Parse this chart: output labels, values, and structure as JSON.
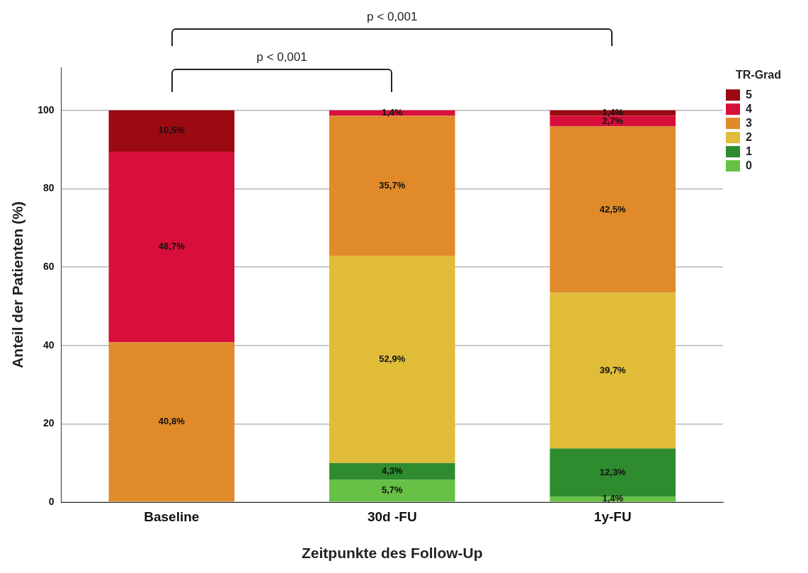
{
  "chart_data": {
    "type": "bar",
    "stacked": true,
    "xlabel": "Zeitpunkte des Follow-Up",
    "ylabel": "Anteil der Patienten (%)",
    "legend_title": "TR-Grad",
    "legend": "top right",
    "categories": [
      "Baseline",
      "30d -FU",
      "1y-FU"
    ],
    "ylim": [
      0,
      111
    ],
    "yticks": [
      0,
      20,
      40,
      60,
      80,
      100
    ],
    "grid": "y",
    "series": [
      {
        "name": "0",
        "color": "#66c144",
        "values": [
          0,
          5.7,
          1.4
        ],
        "value_labels": [
          null,
          "5,7%",
          "1,4%"
        ]
      },
      {
        "name": "1",
        "color": "#2e8b2e",
        "values": [
          0,
          4.3,
          12.3
        ],
        "value_labels": [
          null,
          "4,3%",
          "12,3%"
        ]
      },
      {
        "name": "2",
        "color": "#e0bc38",
        "values": [
          0,
          52.9,
          39.7
        ],
        "value_labels": [
          null,
          "52,9%",
          "39,7%"
        ]
      },
      {
        "name": "3",
        "color": "#e08a2a",
        "values": [
          40.8,
          35.7,
          42.5
        ],
        "value_labels": [
          "40,8%",
          "35,7%",
          "42,5%"
        ]
      },
      {
        "name": "4",
        "color": "#d80f3a",
        "values": [
          48.7,
          1.4,
          2.7
        ],
        "value_labels": [
          "48,7%",
          "1,4%",
          "2,7%"
        ]
      },
      {
        "name": "5",
        "color": "#9b0a10",
        "values": [
          10.5,
          0,
          1.4
        ],
        "value_labels": [
          "10,5%",
          null,
          "1,4%"
        ]
      }
    ],
    "annotations": [
      "p < 0,001",
      "p < 0,001"
    ]
  }
}
